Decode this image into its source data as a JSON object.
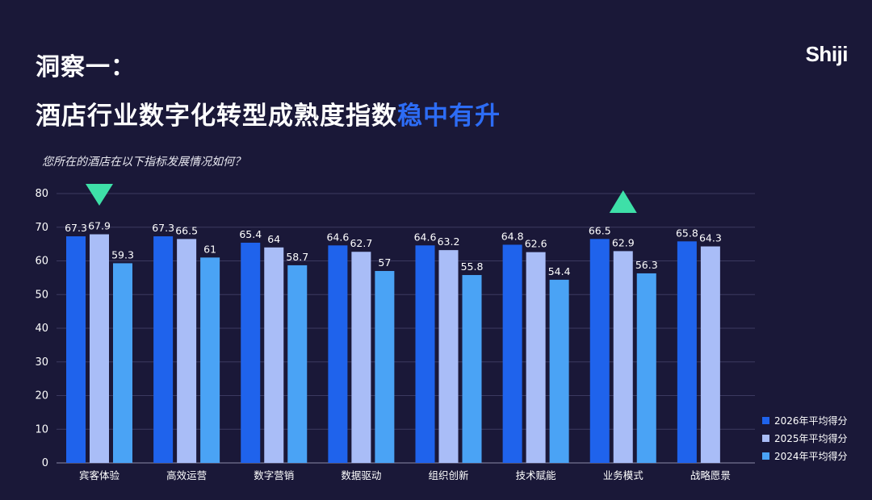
{
  "header": {
    "title_line1": "洞察一：",
    "title_line2_main": "酒店行业数字化转型成熟度指数",
    "title_line2_highlight": "稳中有升",
    "logo": "Shiji"
  },
  "question": "您所在的酒店在以下指标发展情况如何？",
  "colors": {
    "background": "#1a1838",
    "highlight": "#2d6cf5",
    "marker_down": "#3ee0a8",
    "marker_up": "#3ee0a8"
  },
  "chart_data": {
    "type": "bar",
    "categories": [
      "宾客体验",
      "高效运营",
      "数字营销",
      "数据驱动",
      "组织创新",
      "技术赋能",
      "业务模式",
      "战略愿景"
    ],
    "series": [
      {
        "name": "2026年平均得分",
        "color": "#1f63ec",
        "values": [
          67.3,
          67.3,
          65.4,
          64.6,
          64.6,
          64.8,
          66.5,
          65.8
        ]
      },
      {
        "name": "2025年平均得分",
        "color": "#a9bdf7",
        "values": [
          67.9,
          66.5,
          64,
          62.7,
          63.2,
          62.6,
          62.9,
          64.3
        ]
      },
      {
        "name": "2024年平均得分",
        "color": "#4aa3f5",
        "values": [
          59.3,
          61,
          58.7,
          57,
          55.8,
          54.4,
          56.3,
          null
        ]
      }
    ],
    "ylim": [
      0,
      80
    ],
    "yticks": [
      0,
      10,
      20,
      30,
      40,
      50,
      60,
      70,
      80
    ],
    "grid": true,
    "legend": "bottom-right",
    "markers": [
      {
        "category_index": 0,
        "direction": "down"
      },
      {
        "category_index": 6,
        "direction": "up"
      }
    ]
  }
}
